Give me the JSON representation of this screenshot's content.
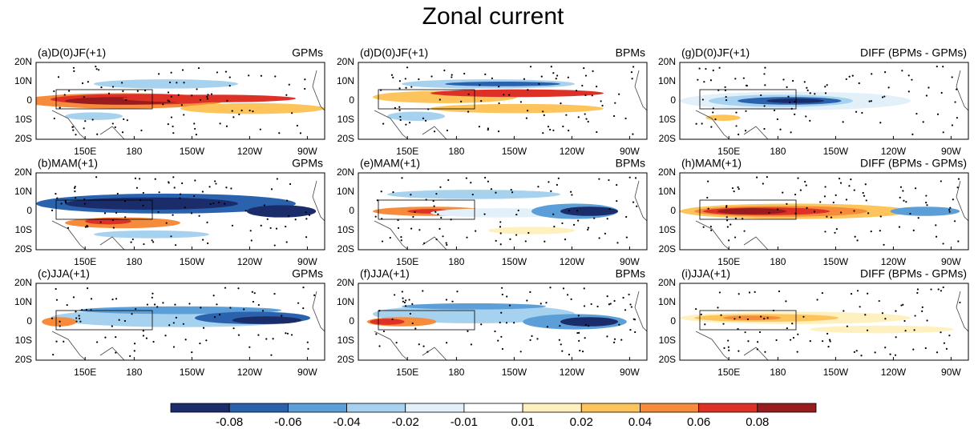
{
  "title": "Zonal current",
  "panels": [
    {
      "label": "(a)D(0)JF(+1)",
      "group": "GPMs"
    },
    {
      "label": "(b)MAM(+1)",
      "group": "GPMs"
    },
    {
      "label": "(c)JJA(+1)",
      "group": "GPMs"
    },
    {
      "label": "(d)D(0)JF(+1)",
      "group": "BPMs"
    },
    {
      "label": "(e)MAM(+1)",
      "group": "BPMs"
    },
    {
      "label": "(f)JJA(+1)",
      "group": "BPMs"
    },
    {
      "label": "(g)D(0)JF(+1)",
      "group": "DIFF (BPMs - GPMs)"
    },
    {
      "label": "(h)MAM(+1)",
      "group": "DIFF (BPMs - GPMs)"
    },
    {
      "label": "(i)JJA(+1)",
      "group": "DIFF (BPMs - GPMs)"
    }
  ],
  "lat_labels": [
    "20N",
    "10N",
    "0",
    "10S",
    "20S"
  ],
  "lon_labels": [
    "150E",
    "180",
    "150W",
    "120W",
    "90W"
  ],
  "colorbar": {
    "labels": [
      -0.08,
      -0.06,
      -0.04,
      -0.02,
      -0.01,
      0.01,
      0.02,
      0.04,
      0.06,
      0.08
    ],
    "colors": [
      "#1b2c6b",
      "#2b62ad",
      "#5c9fd8",
      "#a6d1ef",
      "#e2f0fa",
      "#ffffff",
      "#fff0bf",
      "#fdc45b",
      "#f58b3b",
      "#dd3128",
      "#981b1e"
    ]
  }
}
